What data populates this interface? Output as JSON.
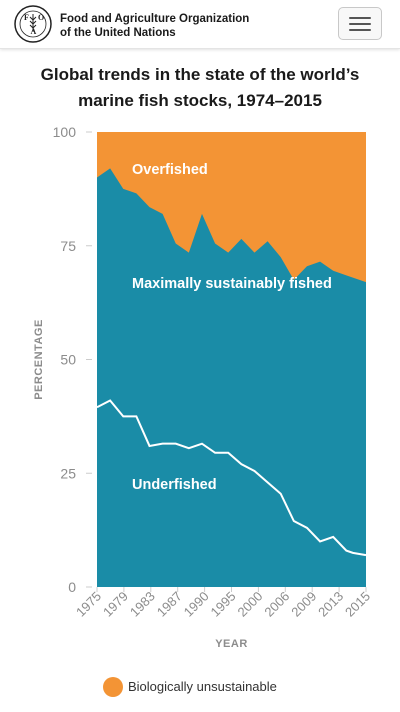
{
  "header": {
    "org_line1": "Food and Agriculture Organization",
    "org_line2": "of the United Nations",
    "logo_letters": [
      "F",
      "A",
      "O"
    ],
    "logo_text": "FIAT PANIS",
    "menu_icon": "hamburger-menu-icon"
  },
  "chart_title": {
    "line1": "Global trends in the state of the world’s",
    "line2": "marine fish stocks, 1974–2015"
  },
  "colors": {
    "overfished": "#f39435",
    "sustainable": "#1a8ca7",
    "line": "#ffffff",
    "axis_text": "#8c8c8c"
  },
  "chart_data": {
    "type": "area",
    "title": "Global trends in the state of the world’s marine fish stocks, 1974–2015",
    "xlabel": "YEAR",
    "ylabel": "PERCENTAGE",
    "xlim": [
      1974,
      2015
    ],
    "ylim": [
      0,
      100
    ],
    "yticks": [
      0,
      25,
      50,
      75,
      100
    ],
    "xtick_labels": [
      "1975",
      "1979",
      "1983",
      "1987",
      "1990",
      "1995",
      "2000",
      "2006",
      "2009",
      "2013",
      "2015"
    ],
    "grid": false,
    "series": [
      {
        "name": "Underfished",
        "x": [
          1974,
          1976,
          1978,
          1980,
          1982,
          1984,
          1986,
          1988,
          1990,
          1992,
          1994,
          1996,
          1998,
          2000,
          2002,
          2004,
          2006,
          2008,
          2010,
          2012,
          2013,
          2015
        ],
        "values": [
          39.5,
          41,
          37.5,
          37.5,
          31,
          31.5,
          31.5,
          30.5,
          31.5,
          29.5,
          29.5,
          27,
          25.5,
          23,
          20.5,
          14.5,
          13,
          10,
          11,
          8,
          7.5,
          7
        ]
      },
      {
        "name": "Maximally sustainably fished",
        "x": [
          1974,
          1976,
          1978,
          1980,
          1982,
          1984,
          1986,
          1988,
          1990,
          1992,
          1994,
          1996,
          1998,
          2000,
          2002,
          2004,
          2006,
          2008,
          2010,
          2012,
          2013,
          2015
        ],
        "upper": [
          90,
          92,
          87.5,
          86.5,
          83.5,
          82,
          75.5,
          73.5,
          82,
          75.5,
          73.5,
          76.5,
          73.5,
          76,
          72.5,
          67.5,
          70.5,
          71.5,
          69.5,
          68.5,
          68,
          67
        ]
      },
      {
        "name": "Overfished",
        "note": "area between maximally sustainably fished upper boundary and 100"
      }
    ],
    "annotations": [
      "Overfished",
      "Maximally sustainably fished",
      "Underfished"
    ]
  },
  "legend": {
    "items": [
      {
        "label": "Biologically unsustainable",
        "color": "#f39435"
      }
    ]
  }
}
